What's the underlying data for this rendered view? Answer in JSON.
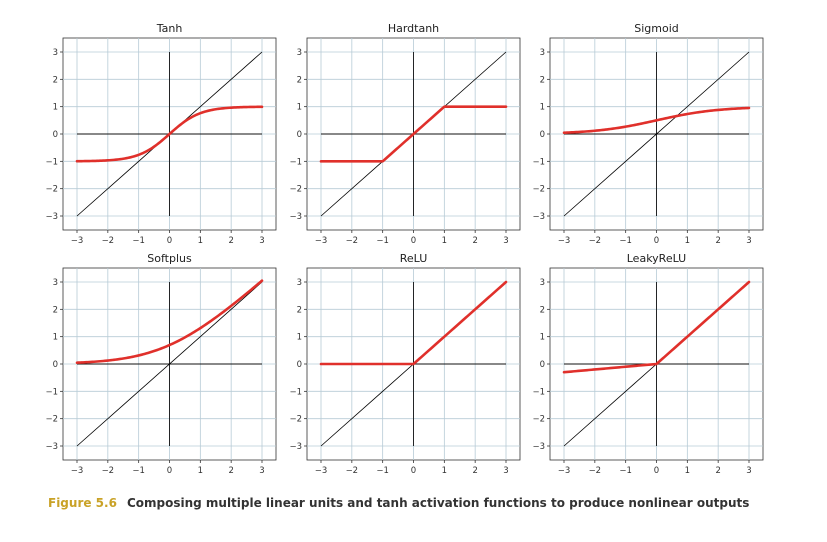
{
  "chart_data": [
    {
      "type": "line",
      "title": "Tanh",
      "function": "tanh",
      "xlim": [
        -3,
        3
      ],
      "ylim": [
        -3,
        3
      ],
      "xticks": [
        -3,
        -2,
        -1,
        0,
        1,
        2,
        3
      ],
      "yticks": [
        -3,
        -2,
        -1,
        0,
        1,
        2,
        3
      ],
      "grid": true,
      "series": [
        {
          "x": [
            -3,
            -2,
            -1,
            -0.5,
            0,
            0.5,
            1,
            2,
            3
          ],
          "y": [
            -0.995,
            -0.964,
            -0.762,
            -0.462,
            0,
            0.462,
            0.762,
            0.964,
            0.995
          ],
          "color": "#e0302b"
        },
        {
          "x": [
            -3,
            3
          ],
          "y": [
            -3,
            3
          ],
          "color": "#000000"
        }
      ]
    },
    {
      "type": "line",
      "title": "Hardtanh",
      "function": "hardtanh",
      "xlim": [
        -3,
        3
      ],
      "ylim": [
        -3,
        3
      ],
      "xticks": [
        -3,
        -2,
        -1,
        0,
        1,
        2,
        3
      ],
      "yticks": [
        -3,
        -2,
        -1,
        0,
        1,
        2,
        3
      ],
      "grid": true,
      "series": [
        {
          "x": [
            -3,
            -1,
            1,
            3
          ],
          "y": [
            -1,
            -1,
            1,
            1
          ],
          "color": "#e0302b"
        },
        {
          "x": [
            -3,
            3
          ],
          "y": [
            -3,
            3
          ],
          "color": "#000000"
        }
      ]
    },
    {
      "type": "line",
      "title": "Sigmoid",
      "function": "sigmoid",
      "xlim": [
        -3,
        3
      ],
      "ylim": [
        -3,
        3
      ],
      "xticks": [
        -3,
        -2,
        -1,
        0,
        1,
        2,
        3
      ],
      "yticks": [
        -3,
        -2,
        -1,
        0,
        1,
        2,
        3
      ],
      "grid": true,
      "series": [
        {
          "x": [
            -3,
            -2,
            -1,
            0,
            1,
            2,
            3
          ],
          "y": [
            0.047,
            0.119,
            0.269,
            0.5,
            0.731,
            0.881,
            0.953
          ],
          "color": "#e0302b"
        },
        {
          "x": [
            -3,
            3
          ],
          "y": [
            -3,
            3
          ],
          "color": "#000000"
        }
      ]
    },
    {
      "type": "line",
      "title": "Softplus",
      "function": "softplus",
      "xlim": [
        -3,
        3
      ],
      "ylim": [
        -3,
        3
      ],
      "xticks": [
        -3,
        -2,
        -1,
        0,
        1,
        2,
        3
      ],
      "yticks": [
        -3,
        -2,
        -1,
        0,
        1,
        2,
        3
      ],
      "grid": true,
      "series": [
        {
          "x": [
            -3,
            -2,
            -1,
            0,
            1,
            2,
            3
          ],
          "y": [
            0.049,
            0.127,
            0.313,
            0.693,
            1.313,
            2.127,
            3.049
          ],
          "color": "#e0302b"
        },
        {
          "x": [
            -3,
            3
          ],
          "y": [
            -3,
            3
          ],
          "color": "#000000"
        }
      ]
    },
    {
      "type": "line",
      "title": "ReLU",
      "function": "relu",
      "xlim": [
        -3,
        3
      ],
      "ylim": [
        -3,
        3
      ],
      "xticks": [
        -3,
        -2,
        -1,
        0,
        1,
        2,
        3
      ],
      "yticks": [
        -3,
        -2,
        -1,
        0,
        1,
        2,
        3
      ],
      "grid": true,
      "series": [
        {
          "x": [
            -3,
            0,
            3
          ],
          "y": [
            0,
            0,
            3
          ],
          "color": "#e0302b"
        },
        {
          "x": [
            -3,
            3
          ],
          "y": [
            -3,
            3
          ],
          "color": "#000000"
        }
      ]
    },
    {
      "type": "line",
      "title": "LeakyReLU",
      "function": "leakyrelu",
      "xlim": [
        -3,
        3
      ],
      "ylim": [
        -3,
        3
      ],
      "xticks": [
        -3,
        -2,
        -1,
        0,
        1,
        2,
        3
      ],
      "yticks": [
        -3,
        -2,
        -1,
        0,
        1,
        2,
        3
      ],
      "grid": true,
      "series": [
        {
          "x": [
            -3,
            0,
            3
          ],
          "y": [
            -0.3,
            0,
            3
          ],
          "color": "#e0302b"
        },
        {
          "x": [
            -3,
            3
          ],
          "y": [
            -3,
            3
          ],
          "color": "#000000"
        }
      ]
    }
  ],
  "caption": {
    "label": "Figure 5.6",
    "text": "Composing multiple linear units and tanh activation functions to produce nonlinear outputs",
    "label_color": "#c9a227"
  }
}
